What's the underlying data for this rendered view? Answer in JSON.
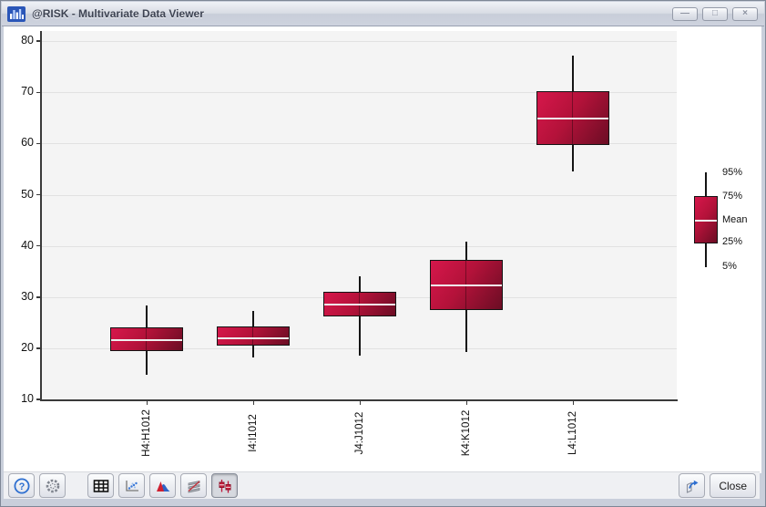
{
  "window": {
    "title": "@RISK - Multivariate Data Viewer",
    "icon": "bar-chart",
    "controls": [
      {
        "name": "minimize",
        "glyph": "—"
      },
      {
        "name": "maximize",
        "glyph": "□"
      },
      {
        "name": "close",
        "glyph": "×"
      }
    ]
  },
  "chart_data": {
    "type": "boxplot",
    "title": "",
    "categories": [
      "H4:H1012",
      "I4:I1012",
      "J4:J1012",
      "K4:K1012",
      "L4:L1012"
    ],
    "series": [
      {
        "name": "H4:H1012",
        "p5": 14.8,
        "p25": 19.4,
        "mean": 21.7,
        "p75": 24.1,
        "p95": 28.4
      },
      {
        "name": "I4:I1012",
        "p5": 18.2,
        "p25": 20.6,
        "mean": 22.1,
        "p75": 24.3,
        "p95": 27.2
      },
      {
        "name": "J4:J1012",
        "p5": 18.5,
        "p25": 26.2,
        "mean": 28.7,
        "p75": 31.0,
        "p95": 34.0
      },
      {
        "name": "K4:K1012",
        "p5": 19.3,
        "p25": 27.4,
        "mean": 32.3,
        "p75": 37.2,
        "p95": 40.8
      },
      {
        "name": "L4:L1012",
        "p5": 54.6,
        "p25": 59.7,
        "mean": 65.0,
        "p75": 70.3,
        "p95": 77.2
      }
    ],
    "ylim": [
      10,
      82
    ],
    "yticks": [
      10,
      20,
      30,
      40,
      50,
      60,
      70,
      80
    ],
    "xlabel": "",
    "ylabel": "",
    "grid": true,
    "legend": {
      "position": "right",
      "labels": [
        "95%",
        "75%",
        "Mean",
        "25%",
        "5%"
      ]
    },
    "colors": {
      "box_gradient_light": "#d6174b",
      "box_gradient_mid": "#b4123a",
      "box_gradient_dark": "#6b0d24",
      "box_border": "#141414",
      "whisker": "#141414",
      "mean_line": "#efefef",
      "plot_bg": "#f4f4f4",
      "grid_line": "#e1e1e1",
      "axis": "#3a3a3a"
    }
  },
  "toolbar": {
    "buttons": [
      {
        "name": "help",
        "icon": "question-icon",
        "glyph": "?"
      },
      {
        "name": "settings",
        "icon": "gear-icon"
      },
      {
        "name": "data-table",
        "icon": "grid-icon"
      },
      {
        "name": "scatter-plot",
        "icon": "scatter-icon"
      },
      {
        "name": "distribution",
        "icon": "distribution-icon"
      },
      {
        "name": "tornado",
        "icon": "tornado-icon"
      },
      {
        "name": "box-plot",
        "icon": "boxplot-icon",
        "selected": true
      },
      {
        "name": "export",
        "icon": "export-icon"
      }
    ],
    "close_label": "Close"
  }
}
